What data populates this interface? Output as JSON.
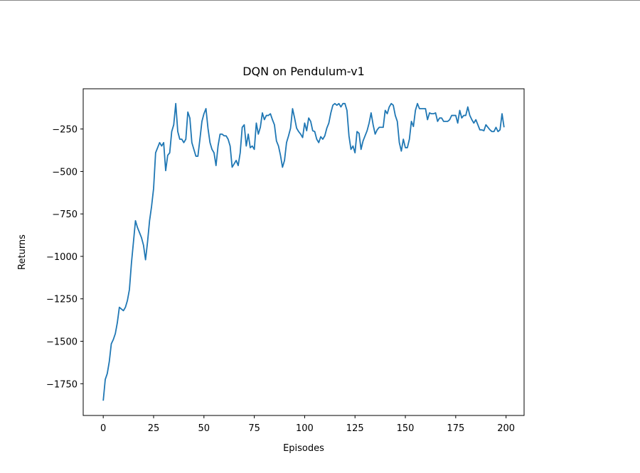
{
  "chart_data": {
    "type": "line",
    "title": "DQN on Pendulum-v1",
    "x_label": "Episodes",
    "y_label": "Returns",
    "xlim": [
      -9.95,
      208.95
    ],
    "ylim": [
      -1937,
      -13
    ],
    "xticks": [
      0,
      25,
      50,
      75,
      100,
      125,
      150,
      175,
      200
    ],
    "yticks": [
      {
        "value": -1750,
        "label": "−1750"
      },
      {
        "value": -1500,
        "label": "−1500"
      },
      {
        "value": -1250,
        "label": "−1250"
      },
      {
        "value": -1000,
        "label": "−1000"
      },
      {
        "value": -750,
        "label": "−750"
      },
      {
        "value": -500,
        "label": "−500"
      },
      {
        "value": -250,
        "label": "−250"
      }
    ],
    "x": [
      0,
      1,
      2,
      3,
      4,
      5,
      6,
      7,
      8,
      9,
      10,
      11,
      12,
      13,
      14,
      15,
      16,
      17,
      18,
      19,
      20,
      21,
      22,
      23,
      24,
      25,
      26,
      27,
      28,
      29,
      30,
      31,
      32,
      33,
      34,
      35,
      36,
      37,
      38,
      39,
      40,
      41,
      42,
      43,
      44,
      45,
      46,
      47,
      48,
      49,
      50,
      51,
      52,
      53,
      54,
      55,
      56,
      57,
      58,
      59,
      60,
      61,
      62,
      63,
      64,
      65,
      66,
      67,
      68,
      69,
      70,
      71,
      72,
      73,
      74,
      75,
      76,
      77,
      78,
      79,
      80,
      81,
      82,
      83,
      84,
      85,
      86,
      87,
      88,
      89,
      90,
      91,
      92,
      93,
      94,
      95,
      96,
      97,
      98,
      99,
      100,
      101,
      102,
      103,
      104,
      105,
      106,
      107,
      108,
      109,
      110,
      111,
      112,
      113,
      114,
      115,
      116,
      117,
      118,
      119,
      120,
      121,
      122,
      123,
      124,
      125,
      126,
      127,
      128,
      129,
      130,
      131,
      132,
      133,
      134,
      135,
      136,
      137,
      138,
      139,
      140,
      141,
      142,
      143,
      144,
      145,
      146,
      147,
      148,
      149,
      150,
      151,
      152,
      153,
      154,
      155,
      156,
      157,
      158,
      159,
      160,
      161,
      162,
      163,
      164,
      165,
      166,
      167,
      168,
      169,
      170,
      171,
      172,
      173,
      174,
      175,
      176,
      177,
      178,
      179,
      180,
      181,
      182,
      183,
      184,
      185,
      186,
      187,
      188,
      189,
      190,
      191,
      192,
      193,
      194,
      195,
      196,
      197,
      198,
      199
    ],
    "series": [
      {
        "color": "#1f77b4",
        "values": [
          -1850,
          -1725,
          -1690,
          -1620,
          -1515,
          -1490,
          -1455,
          -1390,
          -1300,
          -1310,
          -1320,
          -1300,
          -1260,
          -1195,
          -1040,
          -915,
          -790,
          -830,
          -860,
          -890,
          -935,
          -1020,
          -915,
          -790,
          -705,
          -600,
          -390,
          -360,
          -330,
          -350,
          -330,
          -495,
          -405,
          -390,
          -265,
          -225,
          -100,
          -265,
          -310,
          -310,
          -330,
          -310,
          -150,
          -185,
          -330,
          -370,
          -410,
          -410,
          -310,
          -205,
          -160,
          -130,
          -245,
          -330,
          -370,
          -390,
          -465,
          -350,
          -280,
          -280,
          -290,
          -290,
          -310,
          -350,
          -475,
          -455,
          -435,
          -465,
          -390,
          -240,
          -225,
          -350,
          -280,
          -360,
          -350,
          -370,
          -215,
          -280,
          -240,
          -155,
          -195,
          -170,
          -170,
          -160,
          -195,
          -225,
          -320,
          -350,
          -405,
          -475,
          -435,
          -330,
          -290,
          -245,
          -130,
          -185,
          -245,
          -265,
          -280,
          -300,
          -215,
          -260,
          -185,
          -205,
          -260,
          -265,
          -310,
          -330,
          -295,
          -310,
          -290,
          -245,
          -215,
          -155,
          -110,
          -100,
          -110,
          -100,
          -120,
          -100,
          -100,
          -140,
          -290,
          -370,
          -350,
          -390,
          -265,
          -275,
          -370,
          -320,
          -290,
          -260,
          -215,
          -155,
          -225,
          -280,
          -255,
          -240,
          -240,
          -240,
          -140,
          -160,
          -120,
          -100,
          -110,
          -170,
          -205,
          -330,
          -380,
          -310,
          -360,
          -360,
          -310,
          -205,
          -235,
          -140,
          -100,
          -130,
          -130,
          -130,
          -130,
          -195,
          -155,
          -160,
          -160,
          -155,
          -205,
          -185,
          -185,
          -205,
          -205,
          -205,
          -195,
          -170,
          -170,
          -170,
          -215,
          -140,
          -185,
          -170,
          -170,
          -120,
          -170,
          -195,
          -215,
          -195,
          -225,
          -255,
          -255,
          -260,
          -225,
          -240,
          -255,
          -265,
          -265,
          -240,
          -265,
          -255,
          -160,
          -240
        ]
      }
    ]
  }
}
